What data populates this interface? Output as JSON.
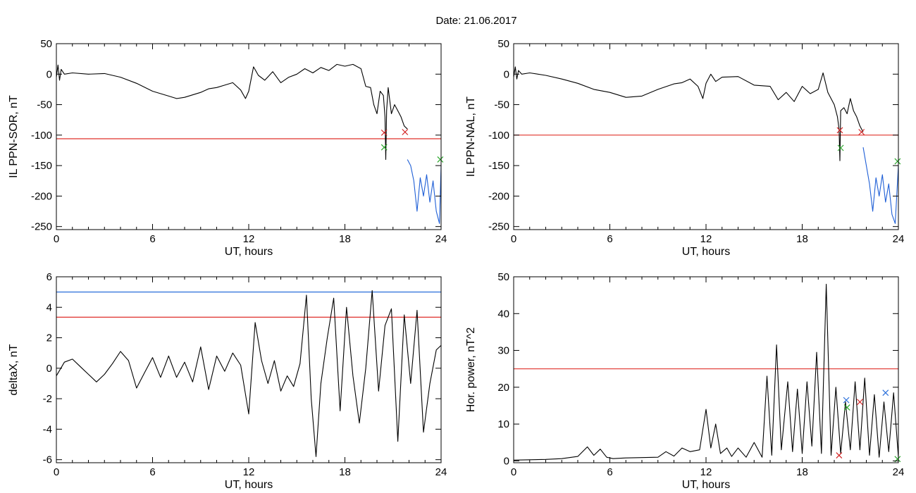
{
  "header": {
    "title": "Date:  21.06.2017"
  },
  "colors": {
    "threshold_red": "#e0302a",
    "threshold_blue": "#2a6fdb",
    "series_black": "#000000",
    "series_blue": "#1f5fd6",
    "marker_red": "#d22020",
    "marker_green": "#2aa52a",
    "marker_blue": "#2a6fdb"
  },
  "chart_data": [
    {
      "id": "top-left",
      "type": "line",
      "title": "",
      "xlabel": "UT, hours",
      "ylabel": "IL PPN-SOR, nT",
      "xlim": [
        0,
        24
      ],
      "ylim": [
        -255,
        50
      ],
      "xticks": [
        0,
        6,
        12,
        18,
        24
      ],
      "yticks": [
        50,
        0,
        -50,
        -100,
        -150,
        -200,
        -250
      ],
      "thresholds": [
        {
          "y": -106,
          "color": "#e0302a"
        }
      ],
      "series": [
        {
          "color": "#000000",
          "x": [
            0,
            0.1,
            0.2,
            0.3,
            0.5,
            1,
            2,
            3,
            4,
            5,
            6,
            7,
            7.5,
            8,
            9,
            9.5,
            10,
            10.5,
            11,
            11.5,
            11.8,
            12,
            12.3,
            12.6,
            13,
            13.5,
            14,
            14.5,
            15,
            15.5,
            16,
            16.5,
            17,
            17.5,
            18,
            18.5,
            19,
            19.3,
            19.6,
            19.8,
            20,
            20.2,
            20.4,
            20.5,
            20.55,
            20.6,
            20.7,
            20.9,
            21.1,
            21.3,
            21.5,
            21.7,
            21.9
          ],
          "y": [
            -5,
            15,
            -10,
            8,
            0,
            2,
            0,
            1,
            -5,
            -15,
            -28,
            -36,
            -40,
            -38,
            -30,
            -24,
            -22,
            -18,
            -14,
            -26,
            -40,
            -28,
            12,
            -2,
            -10,
            4,
            -14,
            -5,
            0,
            9,
            2,
            11,
            6,
            16,
            13,
            16,
            9,
            -20,
            -22,
            -50,
            -65,
            -28,
            -35,
            -70,
            -140,
            -60,
            -22,
            -65,
            -50,
            -60,
            -70,
            -85,
            -90
          ]
        },
        {
          "color": "#1f5fd6",
          "x": [
            21.9,
            22.1,
            22.3,
            22.5,
            22.7,
            22.9,
            23.1,
            23.3,
            23.5,
            23.7,
            23.9,
            24
          ],
          "y": [
            -140,
            -150,
            -175,
            -225,
            -170,
            -200,
            -165,
            -210,
            -175,
            -225,
            -245,
            -150
          ]
        }
      ],
      "markers": [
        {
          "x": 20.45,
          "y": -96,
          "color": "#d22020"
        },
        {
          "x": 20.45,
          "y": -120,
          "color": "#2aa52a"
        },
        {
          "x": 21.75,
          "y": -95,
          "color": "#d22020"
        },
        {
          "x": 23.95,
          "y": -140,
          "color": "#2aa52a"
        }
      ]
    },
    {
      "id": "top-right",
      "type": "line",
      "title": "",
      "xlabel": "UT, hours",
      "ylabel": "IL PPN-NAL, nT",
      "xlim": [
        0,
        24
      ],
      "ylim": [
        -255,
        50
      ],
      "xticks": [
        0,
        6,
        12,
        18,
        24
      ],
      "yticks": [
        50,
        0,
        -50,
        -100,
        -150,
        -200,
        -250
      ],
      "thresholds": [
        {
          "y": -100,
          "color": "#e0302a"
        }
      ],
      "series": [
        {
          "color": "#000000",
          "x": [
            0,
            0.1,
            0.2,
            0.3,
            0.5,
            1,
            2,
            3,
            4,
            5,
            6,
            7,
            8,
            9,
            10,
            10.5,
            11,
            11.5,
            11.8,
            12,
            12.3,
            12.6,
            13,
            14,
            15,
            16,
            16.5,
            17,
            17.5,
            18,
            18.5,
            19,
            19.3,
            19.6,
            20,
            20.2,
            20.3,
            20.35,
            20.4,
            20.6,
            20.8,
            21,
            21.2,
            21.4,
            21.6,
            21.8
          ],
          "y": [
            -5,
            12,
            -8,
            6,
            0,
            2,
            -2,
            -8,
            -15,
            -25,
            -30,
            -38,
            -36,
            -25,
            -16,
            -14,
            -8,
            -20,
            -40,
            -15,
            0,
            -12,
            -5,
            -4,
            -18,
            -20,
            -42,
            -30,
            -45,
            -20,
            -32,
            -25,
            2,
            -30,
            -50,
            -70,
            -90,
            -142,
            -60,
            -55,
            -65,
            -40,
            -60,
            -70,
            -85,
            -95
          ]
        },
        {
          "color": "#1f5fd6",
          "x": [
            21.8,
            22,
            22.2,
            22.4,
            22.6,
            22.8,
            23,
            23.2,
            23.4,
            23.6,
            23.8,
            24
          ],
          "y": [
            -120,
            -150,
            -180,
            -225,
            -170,
            -200,
            -165,
            -210,
            -180,
            -230,
            -245,
            -150
          ]
        }
      ],
      "markers": [
        {
          "x": 20.35,
          "y": -92,
          "color": "#d22020"
        },
        {
          "x": 20.4,
          "y": -121,
          "color": "#2aa52a"
        },
        {
          "x": 21.7,
          "y": -95,
          "color": "#d22020"
        },
        {
          "x": 23.95,
          "y": -143,
          "color": "#2aa52a"
        }
      ]
    },
    {
      "id": "bottom-left",
      "type": "line",
      "title": "",
      "xlabel": "UT, hours",
      "ylabel": "deltaX, nT",
      "xlim": [
        0,
        24
      ],
      "ylim": [
        -6.2,
        6
      ],
      "xticks": [
        0,
        6,
        12,
        18,
        24
      ],
      "yticks": [
        6,
        4,
        2,
        0,
        -2,
        -4,
        -6
      ],
      "thresholds": [
        {
          "y": 5.0,
          "color": "#2a6fdb"
        },
        {
          "y": 3.35,
          "color": "#e0302a"
        }
      ],
      "series": [
        {
          "color": "#000000",
          "x": [
            0,
            0.5,
            1,
            1.5,
            2,
            2.5,
            3,
            3.5,
            4,
            4.5,
            5,
            5.5,
            6,
            6.5,
            7,
            7.5,
            8,
            8.5,
            9,
            9.5,
            10,
            10.5,
            11,
            11.5,
            12,
            12.4,
            12.8,
            13.2,
            13.6,
            14,
            14.4,
            14.8,
            15.2,
            15.6,
            15.9,
            16.2,
            16.5,
            16.9,
            17.3,
            17.7,
            18.1,
            18.5,
            18.9,
            19.3,
            19.7,
            20.1,
            20.5,
            20.9,
            21.3,
            21.7,
            22.1,
            22.5,
            22.9,
            23.3,
            23.7,
            24
          ],
          "y": [
            -0.5,
            0.4,
            0.6,
            0.1,
            -0.4,
            -0.9,
            -0.4,
            0.3,
            1.1,
            0.5,
            -1.3,
            -0.3,
            0.7,
            -0.6,
            0.8,
            -0.6,
            0.4,
            -0.9,
            1.4,
            -1.4,
            0.8,
            -0.2,
            1.0,
            0.2,
            -3.0,
            3.0,
            0.5,
            -1.0,
            0.5,
            -1.5,
            -0.5,
            -1.2,
            0.3,
            4.8,
            -2.0,
            -5.8,
            -1.0,
            2.0,
            4.6,
            -2.8,
            4.0,
            -0.5,
            -3.6,
            0.0,
            5.1,
            -1.5,
            2.8,
            3.9,
            -4.8,
            3.5,
            -1.0,
            3.8,
            -4.2,
            -1.0,
            1.2,
            1.5
          ]
        }
      ],
      "markers": []
    },
    {
      "id": "bottom-right",
      "type": "line",
      "title": "",
      "xlabel": "UT, hours",
      "ylabel": "Hor. power, nT^2",
      "xlim": [
        0,
        24
      ],
      "ylim": [
        -0.5,
        50
      ],
      "xticks": [
        0,
        6,
        12,
        18,
        24
      ],
      "yticks": [
        50,
        40,
        30,
        20,
        10,
        0
      ],
      "thresholds": [
        {
          "y": 25,
          "color": "#e0302a"
        }
      ],
      "series": [
        {
          "color": "#000000",
          "x": [
            0,
            1,
            2,
            3,
            4,
            4.6,
            5,
            5.4,
            5.8,
            6.2,
            7,
            8,
            9,
            9.5,
            10,
            10.5,
            11,
            11.6,
            12,
            12.3,
            12.6,
            12.9,
            13.3,
            13.6,
            14,
            14.5,
            15,
            15.5,
            15.8,
            16.1,
            16.4,
            16.7,
            17.1,
            17.4,
            17.7,
            18,
            18.3,
            18.6,
            18.9,
            19.2,
            19.5,
            19.8,
            20.1,
            20.4,
            20.7,
            21,
            21.3,
            21.6,
            21.9,
            22.2,
            22.5,
            22.8,
            23.1,
            23.4,
            23.7,
            24
          ],
          "y": [
            0.2,
            0.3,
            0.4,
            0.6,
            1.2,
            3.8,
            1.5,
            3.2,
            1.0,
            0.6,
            0.8,
            0.9,
            1.0,
            2.5,
            1.3,
            3.5,
            2.5,
            3.0,
            14.0,
            3.5,
            10.0,
            2.0,
            3.5,
            1.2,
            3.5,
            1.0,
            5.0,
            1.0,
            23.0,
            1.5,
            31.5,
            3.0,
            21.5,
            2.5,
            19.5,
            2.0,
            21.5,
            4.0,
            29.5,
            2.0,
            48.0,
            1.5,
            20.0,
            2.0,
            16.0,
            3.0,
            21.5,
            3.0,
            22.5,
            1.5,
            18.0,
            1.0,
            16.0,
            2.5,
            18.5,
            1.0
          ]
        }
      ],
      "markers": [
        {
          "x": 20.3,
          "y": 1.5,
          "color": "#d22020"
        },
        {
          "x": 20.75,
          "y": 16.5,
          "color": "#2a6fdb"
        },
        {
          "x": 20.8,
          "y": 14.5,
          "color": "#2aa52a"
        },
        {
          "x": 21.6,
          "y": 16.0,
          "color": "#d22020"
        },
        {
          "x": 23.2,
          "y": 18.5,
          "color": "#2a6fdb"
        },
        {
          "x": 23.95,
          "y": 0.5,
          "color": "#2aa52a"
        }
      ]
    }
  ]
}
